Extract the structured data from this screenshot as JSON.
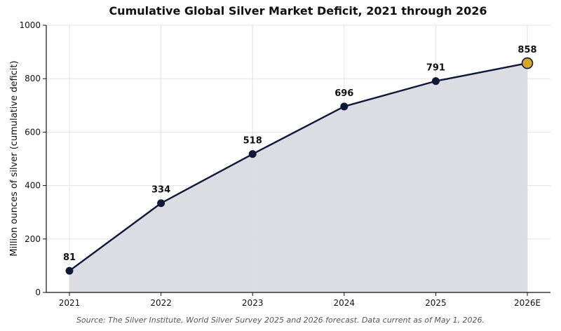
{
  "chart_data": {
    "type": "area",
    "title": "Cumulative Global Silver Market Deficit, 2021 through 2026",
    "ylabel": "Million ounces of silver (cumulative deficit)",
    "xlabel": "",
    "categories": [
      "2021",
      "2022",
      "2023",
      "2024",
      "2025",
      "2026E"
    ],
    "values": [
      81,
      334,
      518,
      696,
      791,
      858
    ],
    "data_labels": [
      "81",
      "334",
      "518",
      "696",
      "791",
      "858"
    ],
    "ylim": [
      0,
      1000
    ],
    "yticks": [
      0,
      200,
      400,
      600,
      800,
      1000
    ],
    "ytick_labels": [
      "0",
      "200",
      "400",
      "600",
      "800",
      "1000"
    ],
    "grid": true,
    "highlight_index": 5,
    "colors": {
      "line": "#0f1838",
      "marker": "#0f1838",
      "fill": "#d9dbe0",
      "highlight": "#d4a62a",
      "grid": "#e3e3e3"
    },
    "source": "Source: The Silver Institute, World Silver Survey 2025 and 2026 forecast. Data current as of May 1, 2026."
  }
}
